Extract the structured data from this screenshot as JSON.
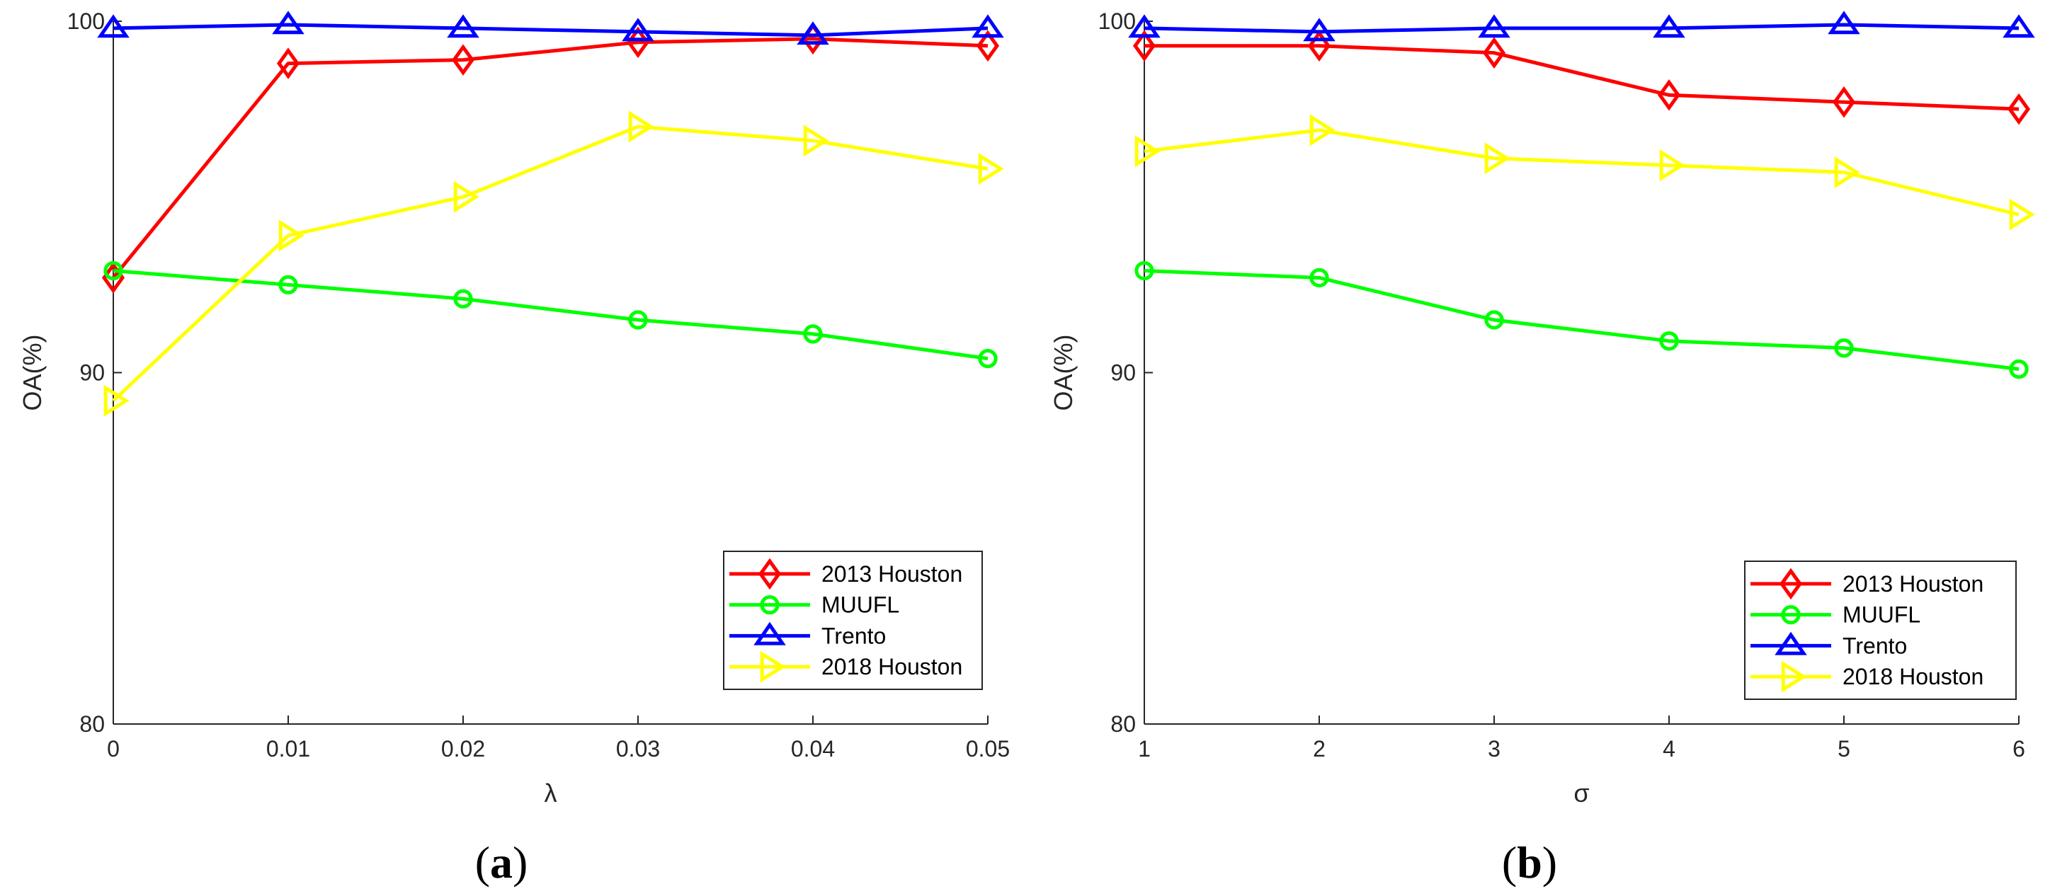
{
  "chart_data": [
    {
      "type": "line",
      "panel_label": "a",
      "title": "",
      "xlabel": "λ",
      "ylabel": "OA(%)",
      "x": [
        0,
        0.01,
        0.02,
        0.03,
        0.04,
        0.05
      ],
      "xtick_labels": [
        "0",
        "0.01",
        "0.02",
        "0.03",
        "0.04",
        "0.05"
      ],
      "xlim": [
        0,
        0.05
      ],
      "ylim": [
        80,
        100
      ],
      "yticks": [
        80,
        90,
        100
      ],
      "ytick_labels": [
        "80",
        "90",
        "100"
      ],
      "grid": false,
      "legend_position": "bottom-right",
      "series": [
        {
          "name": "2013 Houston",
          "color": "#ff0000",
          "marker": "diamond",
          "values": [
            92.7,
            98.8,
            98.9,
            99.4,
            99.5,
            99.3
          ]
        },
        {
          "name": "MUUFL",
          "color": "#00ff00",
          "marker": "circle",
          "values": [
            92.9,
            92.5,
            92.1,
            91.5,
            91.1,
            90.4
          ]
        },
        {
          "name": "Trento",
          "color": "#0000ff",
          "marker": "triangle",
          "values": [
            99.8,
            99.9,
            99.8,
            99.7,
            99.6,
            99.8
          ]
        },
        {
          "name": "2018 Houston",
          "color": "#ffff00",
          "marker": "triangle-right",
          "values": [
            89.2,
            93.9,
            95.0,
            97.0,
            96.6,
            95.8
          ]
        }
      ]
    },
    {
      "type": "line",
      "panel_label": "b",
      "title": "",
      "xlabel": "σ",
      "ylabel": "OA(%)",
      "x": [
        1,
        2,
        3,
        4,
        5,
        6
      ],
      "xtick_labels": [
        "1",
        "2",
        "3",
        "4",
        "5",
        "6"
      ],
      "xlim": [
        1,
        6
      ],
      "ylim": [
        80,
        100
      ],
      "yticks": [
        80,
        90,
        100
      ],
      "ytick_labels": [
        "80",
        "90",
        "100"
      ],
      "grid": false,
      "legend_position": "bottom-right",
      "series": [
        {
          "name": "2013 Houston",
          "color": "#ff0000",
          "marker": "diamond",
          "values": [
            99.3,
            99.3,
            99.1,
            97.9,
            97.7,
            97.5
          ]
        },
        {
          "name": "MUUFL",
          "color": "#00ff00",
          "marker": "circle",
          "values": [
            92.9,
            92.7,
            91.5,
            90.9,
            90.7,
            90.1
          ]
        },
        {
          "name": "Trento",
          "color": "#0000ff",
          "marker": "triangle",
          "values": [
            99.8,
            99.7,
            99.8,
            99.8,
            99.9,
            99.8
          ]
        },
        {
          "name": "2018 Houston",
          "color": "#ffff00",
          "marker": "triangle-right",
          "values": [
            96.3,
            96.9,
            96.1,
            95.9,
            95.7,
            94.5
          ]
        }
      ]
    }
  ]
}
